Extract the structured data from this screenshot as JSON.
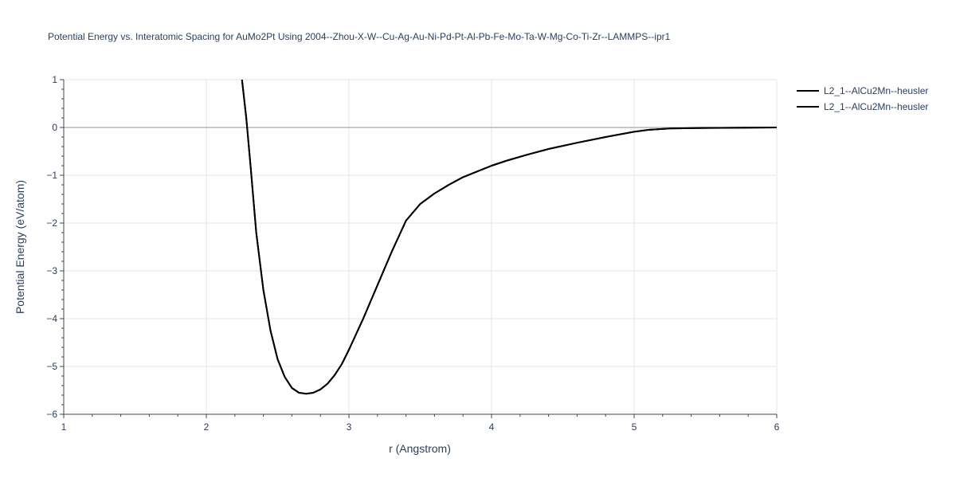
{
  "chart_data": {
    "type": "line",
    "title": "Potential Energy vs. Interatomic Spacing for AuMo2Pt Using 2004--Zhou-X-W--Cu-Ag-Au-Ni-Pd-Pt-Al-Pb-Fe-Mo-Ta-W-Mg-Co-Ti-Zr--LAMMPS--ipr1",
    "xlabel": "r (Angstrom)",
    "ylabel": "Potential Energy (eV/atom)",
    "xlim": [
      1,
      6
    ],
    "ylim": [
      -6,
      1
    ],
    "x_ticks": [
      1,
      2,
      3,
      4,
      5,
      6
    ],
    "x_tick_labels": [
      "1",
      "2",
      "3",
      "4",
      "5",
      "6"
    ],
    "y_ticks": [
      1,
      0,
      -1,
      -2,
      -3,
      -4,
      -5,
      -6
    ],
    "y_tick_labels": [
      "1",
      "0",
      "−1",
      "−2",
      "−3",
      "−4",
      "−5",
      "−6"
    ],
    "grid": true,
    "legend_position": "top-right",
    "series": [
      {
        "name": "L2_1--AlCu2Mn--heusler",
        "color": "#000000",
        "x": [
          2.25,
          2.28,
          2.31,
          2.35,
          2.4,
          2.45,
          2.5,
          2.55,
          2.6,
          2.65,
          2.7,
          2.75,
          2.8,
          2.85,
          2.9,
          2.95,
          3.0,
          3.1,
          3.2,
          3.3,
          3.4,
          3.5,
          3.6,
          3.7,
          3.8,
          3.9,
          4.0,
          4.1,
          4.25,
          4.4,
          4.6,
          4.8,
          5.0,
          5.1,
          5.25,
          5.5,
          6.0
        ],
        "y": [
          1.0,
          0.2,
          -0.8,
          -2.2,
          -3.4,
          -4.25,
          -4.85,
          -5.22,
          -5.45,
          -5.55,
          -5.57,
          -5.55,
          -5.48,
          -5.36,
          -5.18,
          -4.95,
          -4.65,
          -4.0,
          -3.3,
          -2.6,
          -1.95,
          -1.6,
          -1.38,
          -1.2,
          -1.04,
          -0.92,
          -0.8,
          -0.7,
          -0.57,
          -0.45,
          -0.32,
          -0.2,
          -0.09,
          -0.05,
          -0.02,
          -0.01,
          0.0
        ]
      },
      {
        "name": "L2_1--AlCu2Mn--heusler",
        "color": "#000000",
        "x": [
          2.25,
          2.28,
          2.31,
          2.35,
          2.4,
          2.45,
          2.5,
          2.55,
          2.6,
          2.65,
          2.7,
          2.75,
          2.8,
          2.85,
          2.9,
          2.95,
          3.0,
          3.1,
          3.2,
          3.3,
          3.4,
          3.5,
          3.6,
          3.7,
          3.8,
          3.9,
          4.0,
          4.1,
          4.25,
          4.4,
          4.6,
          4.8,
          5.0,
          5.1,
          5.25,
          5.5,
          6.0
        ],
        "y": [
          1.0,
          0.2,
          -0.8,
          -2.2,
          -3.4,
          -4.25,
          -4.85,
          -5.22,
          -5.45,
          -5.55,
          -5.57,
          -5.55,
          -5.48,
          -5.36,
          -5.18,
          -4.95,
          -4.65,
          -4.0,
          -3.3,
          -2.6,
          -1.95,
          -1.6,
          -1.38,
          -1.2,
          -1.04,
          -0.92,
          -0.8,
          -0.7,
          -0.57,
          -0.45,
          -0.32,
          -0.2,
          -0.09,
          -0.05,
          -0.02,
          -0.01,
          0.0
        ]
      }
    ]
  }
}
